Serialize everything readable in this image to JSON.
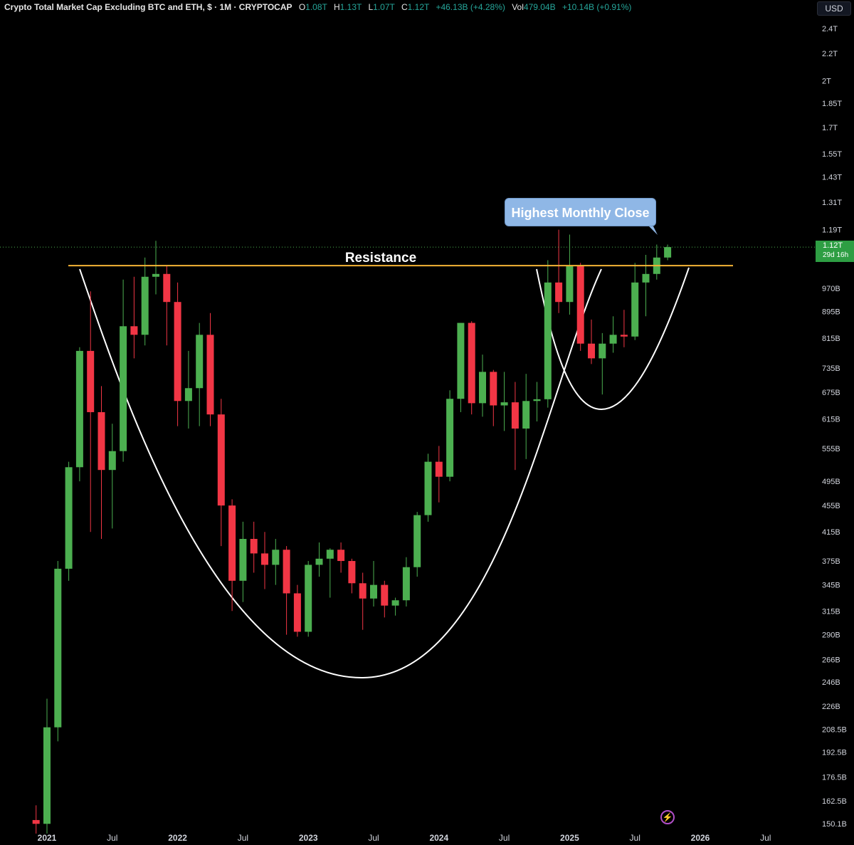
{
  "header": {
    "title": "Crypto Total Market Cap Excluding BTC and ETH, $ · 1M · CRYPTOCAP",
    "o_label": "O",
    "o_value": "1.08T",
    "h_label": "H",
    "h_value": "1.13T",
    "l_label": "L",
    "l_value": "1.07T",
    "c_label": "C",
    "c_value": "1.12T",
    "change": "+46.13B (+4.28%)",
    "vol_label": "Vol",
    "vol_value": "479.04B",
    "vol_change": "+10.14B (+0.91%)"
  },
  "currency": "USD",
  "price_tag": {
    "value": "1.12T",
    "countdown": "29d 16h"
  },
  "annotations": {
    "resistance": "Resistance",
    "highest_close": "Highest Monthly Close"
  },
  "colors": {
    "up": "#4caf50",
    "down": "#f23645",
    "resistance_line": "#f5b335",
    "cup_curve": "#ffffff",
    "bubble": "#8fb7e6",
    "price_tag": "#2e9e43"
  },
  "chart_data": {
    "type": "candlestick",
    "title": "Crypto Total Market Cap Excluding BTC and ETH, $ · 1M · CRYPTOCAP",
    "y_scale": "log",
    "y_unit": "USD",
    "y_ticks": [
      {
        "value": 2400,
        "label": "2.4T"
      },
      {
        "value": 2200,
        "label": "2.2T"
      },
      {
        "value": 2000,
        "label": "2T"
      },
      {
        "value": 1850,
        "label": "1.85T"
      },
      {
        "value": 1700,
        "label": "1.7T"
      },
      {
        "value": 1550,
        "label": "1.55T"
      },
      {
        "value": 1430,
        "label": "1.43T"
      },
      {
        "value": 1310,
        "label": "1.31T"
      },
      {
        "value": 1190,
        "label": "1.19T"
      },
      {
        "value": 970,
        "label": "970B"
      },
      {
        "value": 895,
        "label": "895B"
      },
      {
        "value": 815,
        "label": "815B"
      },
      {
        "value": 735,
        "label": "735B"
      },
      {
        "value": 675,
        "label": "675B"
      },
      {
        "value": 615,
        "label": "615B"
      },
      {
        "value": 555,
        "label": "555B"
      },
      {
        "value": 495,
        "label": "495B"
      },
      {
        "value": 455,
        "label": "455B"
      },
      {
        "value": 415,
        "label": "415B"
      },
      {
        "value": 375,
        "label": "375B"
      },
      {
        "value": 345,
        "label": "345B"
      },
      {
        "value": 315,
        "label": "315B"
      },
      {
        "value": 290,
        "label": "290B"
      },
      {
        "value": 266,
        "label": "266B"
      },
      {
        "value": 246,
        "label": "246B"
      },
      {
        "value": 226,
        "label": "226B"
      },
      {
        "value": 208.5,
        "label": "208.5B"
      },
      {
        "value": 192.5,
        "label": "192.5B"
      },
      {
        "value": 176.5,
        "label": "176.5B"
      },
      {
        "value": 162.5,
        "label": "162.5B"
      },
      {
        "value": 150.1,
        "label": "150.1B"
      }
    ],
    "x_ticks": [
      {
        "month": "2021-01",
        "label": "2021"
      },
      {
        "month": "2021-07",
        "label": "Jul"
      },
      {
        "month": "2022-01",
        "label": "2022"
      },
      {
        "month": "2022-07",
        "label": "Jul"
      },
      {
        "month": "2023-01",
        "label": "2023"
      },
      {
        "month": "2023-07",
        "label": "Jul"
      },
      {
        "month": "2024-01",
        "label": "2024"
      },
      {
        "month": "2024-07",
        "label": "Jul"
      },
      {
        "month": "2025-01",
        "label": "2025"
      },
      {
        "month": "2025-07",
        "label": "Jul"
      },
      {
        "month": "2026-01",
        "label": "2026"
      },
      {
        "month": "2026-07",
        "label": "Jul"
      }
    ],
    "resistance_level": 1050,
    "current_price": 1120,
    "candles": [
      {
        "month": "2020-12",
        "o": 152,
        "h": 160,
        "l": 145,
        "c": 150
      },
      {
        "month": "2021-01",
        "o": 150,
        "h": 232,
        "l": 145,
        "c": 210
      },
      {
        "month": "2021-02",
        "o": 210,
        "h": 375,
        "l": 200,
        "c": 365
      },
      {
        "month": "2021-03",
        "o": 365,
        "h": 530,
        "l": 350,
        "c": 520
      },
      {
        "month": "2021-04",
        "o": 520,
        "h": 790,
        "l": 495,
        "c": 780
      },
      {
        "month": "2021-05",
        "o": 780,
        "h": 960,
        "l": 415,
        "c": 630
      },
      {
        "month": "2021-06",
        "o": 630,
        "h": 690,
        "l": 405,
        "c": 515
      },
      {
        "month": "2021-07",
        "o": 515,
        "h": 605,
        "l": 420,
        "c": 550
      },
      {
        "month": "2021-08",
        "o": 550,
        "h": 1000,
        "l": 530,
        "c": 850
      },
      {
        "month": "2021-09",
        "o": 850,
        "h": 1010,
        "l": 760,
        "c": 825
      },
      {
        "month": "2021-10",
        "o": 825,
        "h": 1080,
        "l": 795,
        "c": 1010
      },
      {
        "month": "2021-11",
        "o": 1010,
        "h": 1145,
        "l": 950,
        "c": 1020
      },
      {
        "month": "2021-12",
        "o": 1020,
        "h": 1050,
        "l": 795,
        "c": 925
      },
      {
        "month": "2022-01",
        "o": 925,
        "h": 990,
        "l": 600,
        "c": 655
      },
      {
        "month": "2022-02",
        "o": 655,
        "h": 780,
        "l": 595,
        "c": 685
      },
      {
        "month": "2022-03",
        "o": 685,
        "h": 860,
        "l": 600,
        "c": 825
      },
      {
        "month": "2022-04",
        "o": 825,
        "h": 890,
        "l": 600,
        "c": 625
      },
      {
        "month": "2022-05",
        "o": 625,
        "h": 660,
        "l": 395,
        "c": 455
      },
      {
        "month": "2022-06",
        "o": 455,
        "h": 465,
        "l": 315,
        "c": 350
      },
      {
        "month": "2022-07",
        "o": 350,
        "h": 430,
        "l": 325,
        "c": 405
      },
      {
        "month": "2022-08",
        "o": 405,
        "h": 430,
        "l": 360,
        "c": 385
      },
      {
        "month": "2022-09",
        "o": 385,
        "h": 415,
        "l": 340,
        "c": 370
      },
      {
        "month": "2022-10",
        "o": 370,
        "h": 405,
        "l": 345,
        "c": 390
      },
      {
        "month": "2022-11",
        "o": 390,
        "h": 395,
        "l": 290,
        "c": 335
      },
      {
        "month": "2022-12",
        "o": 335,
        "h": 345,
        "l": 288,
        "c": 293
      },
      {
        "month": "2023-01",
        "o": 293,
        "h": 375,
        "l": 288,
        "c": 370
      },
      {
        "month": "2023-02",
        "o": 370,
        "h": 400,
        "l": 355,
        "c": 378
      },
      {
        "month": "2023-03",
        "o": 378,
        "h": 392,
        "l": 330,
        "c": 390
      },
      {
        "month": "2023-04",
        "o": 390,
        "h": 400,
        "l": 360,
        "c": 375
      },
      {
        "month": "2023-05",
        "o": 375,
        "h": 378,
        "l": 335,
        "c": 347
      },
      {
        "month": "2023-06",
        "o": 347,
        "h": 360,
        "l": 295,
        "c": 329
      },
      {
        "month": "2023-07",
        "o": 329,
        "h": 375,
        "l": 320,
        "c": 345
      },
      {
        "month": "2023-08",
        "o": 345,
        "h": 350,
        "l": 308,
        "c": 321
      },
      {
        "month": "2023-09",
        "o": 321,
        "h": 330,
        "l": 310,
        "c": 327
      },
      {
        "month": "2023-10",
        "o": 327,
        "h": 380,
        "l": 320,
        "c": 367
      },
      {
        "month": "2023-11",
        "o": 367,
        "h": 445,
        "l": 355,
        "c": 440
      },
      {
        "month": "2023-12",
        "o": 440,
        "h": 545,
        "l": 430,
        "c": 530
      },
      {
        "month": "2024-01",
        "o": 530,
        "h": 560,
        "l": 460,
        "c": 503
      },
      {
        "month": "2024-02",
        "o": 503,
        "h": 680,
        "l": 495,
        "c": 660
      },
      {
        "month": "2024-03",
        "o": 660,
        "h": 860,
        "l": 630,
        "c": 860
      },
      {
        "month": "2024-04",
        "o": 860,
        "h": 865,
        "l": 625,
        "c": 650
      },
      {
        "month": "2024-05",
        "o": 650,
        "h": 770,
        "l": 620,
        "c": 725
      },
      {
        "month": "2024-06",
        "o": 725,
        "h": 730,
        "l": 600,
        "c": 645
      },
      {
        "month": "2024-07",
        "o": 645,
        "h": 725,
        "l": 590,
        "c": 652
      },
      {
        "month": "2024-08",
        "o": 652,
        "h": 700,
        "l": 515,
        "c": 595
      },
      {
        "month": "2024-09",
        "o": 595,
        "h": 720,
        "l": 535,
        "c": 655
      },
      {
        "month": "2024-10",
        "o": 655,
        "h": 700,
        "l": 610,
        "c": 659
      },
      {
        "month": "2024-11",
        "o": 659,
        "h": 1070,
        "l": 640,
        "c": 990
      },
      {
        "month": "2024-12",
        "o": 990,
        "h": 1190,
        "l": 890,
        "c": 925
      },
      {
        "month": "2025-01",
        "o": 925,
        "h": 1170,
        "l": 885,
        "c": 1050
      },
      {
        "month": "2025-02",
        "o": 1050,
        "h": 1060,
        "l": 780,
        "c": 800
      },
      {
        "month": "2025-03",
        "o": 800,
        "h": 870,
        "l": 745,
        "c": 760
      },
      {
        "month": "2025-04",
        "o": 760,
        "h": 830,
        "l": 670,
        "c": 800
      },
      {
        "month": "2025-05",
        "o": 800,
        "h": 880,
        "l": 775,
        "c": 825
      },
      {
        "month": "2025-06",
        "o": 825,
        "h": 900,
        "l": 790,
        "c": 820
      },
      {
        "month": "2025-07",
        "o": 820,
        "h": 1060,
        "l": 810,
        "c": 990
      },
      {
        "month": "2025-08",
        "o": 990,
        "h": 1090,
        "l": 880,
        "c": 1020
      },
      {
        "month": "2025-09",
        "o": 1020,
        "h": 1130,
        "l": 1000,
        "c": 1080
      },
      {
        "month": "2025-10",
        "o": 1080,
        "h": 1130,
        "l": 1070,
        "c": 1120
      }
    ]
  }
}
